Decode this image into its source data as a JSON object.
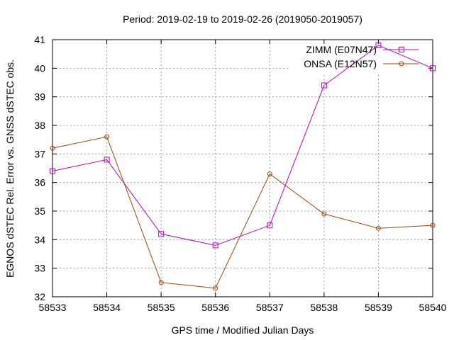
{
  "chart_data": {
    "type": "line",
    "title": "Period: 2019-02-19 to 2019-02-26 (2019050-2019057)",
    "xlabel": "GPS time / Modified Julian Days",
    "ylabel": "EGNOS dSTEC Rel. Error vs. GNSS dSTEC obs.",
    "xlim": [
      58533,
      58540
    ],
    "ylim": [
      32,
      41
    ],
    "xticks": [
      "58533",
      "58534",
      "58535",
      "58536",
      "58537",
      "58538",
      "58539",
      "58540"
    ],
    "yticks": [
      "32",
      "33",
      "34",
      "35",
      "36",
      "37",
      "38",
      "39",
      "40",
      "41"
    ],
    "grid": true,
    "legend_position": "top-right",
    "x": [
      58533,
      58534,
      58535,
      58536,
      58537,
      58538,
      58539,
      58540
    ],
    "series": [
      {
        "name": "ZIMM (E07N47)",
        "color": "#bf00bf",
        "marker": "square",
        "values": [
          36.4,
          36.8,
          34.2,
          33.8,
          34.5,
          39.4,
          40.8,
          40.0
        ]
      },
      {
        "name": "ONSA (E12N57)",
        "color": "#a0450a",
        "marker": "circle",
        "values": [
          37.2,
          37.6,
          32.5,
          32.3,
          36.3,
          34.9,
          34.4,
          34.5
        ]
      }
    ]
  }
}
